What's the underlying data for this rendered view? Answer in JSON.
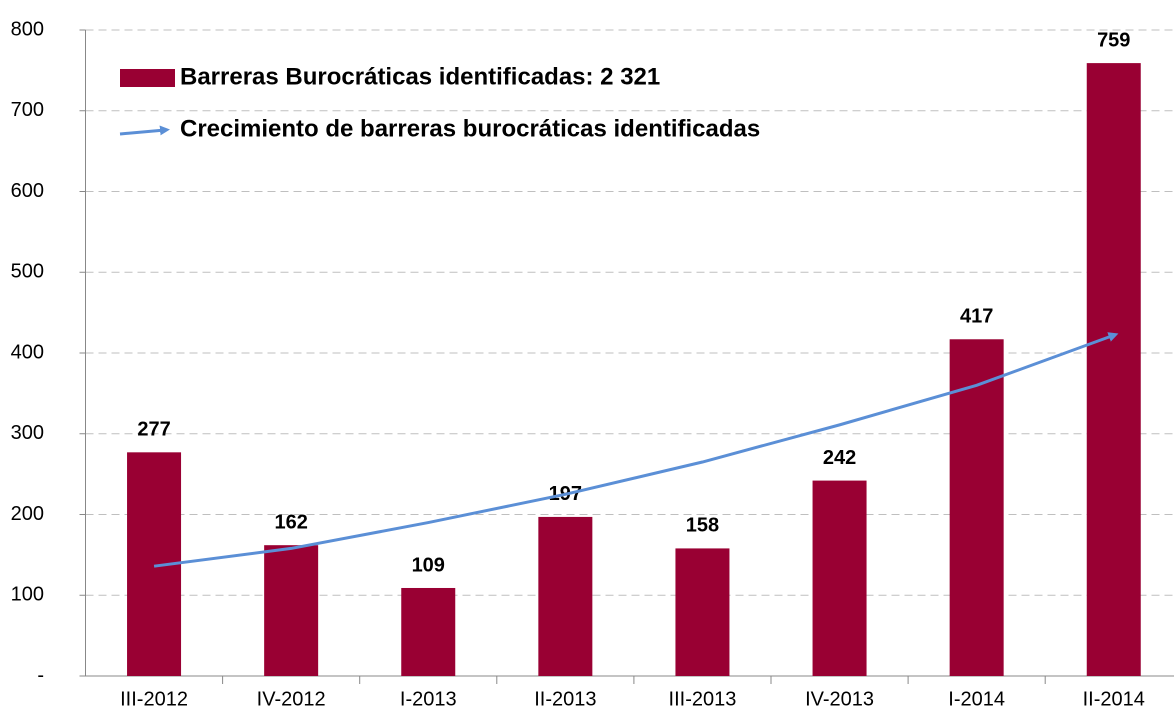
{
  "chart_data": {
    "type": "bar",
    "categories": [
      "III-2012",
      "IV-2012",
      "I-2013",
      "II-2013",
      "III-2013",
      "IV-2013",
      "I-2014",
      "II-2014"
    ],
    "series": [
      {
        "name": "Barreras Burocráticas identificadas: 2 321",
        "color": "#990033",
        "values": [
          277,
          162,
          109,
          197,
          158,
          242,
          417,
          759
        ]
      },
      {
        "name": "Crecimiento de barreras burocráticas identificadas",
        "color": "#5b8fd6",
        "type": "line",
        "values": [
          136,
          158,
          190,
          225,
          265,
          311,
          360,
          422
        ]
      }
    ],
    "ylim": [
      0,
      800
    ],
    "yticks": [
      {
        "value": 0,
        "label": "-"
      },
      100,
      200,
      300,
      400,
      500,
      600,
      700,
      800
    ],
    "grid": true
  }
}
